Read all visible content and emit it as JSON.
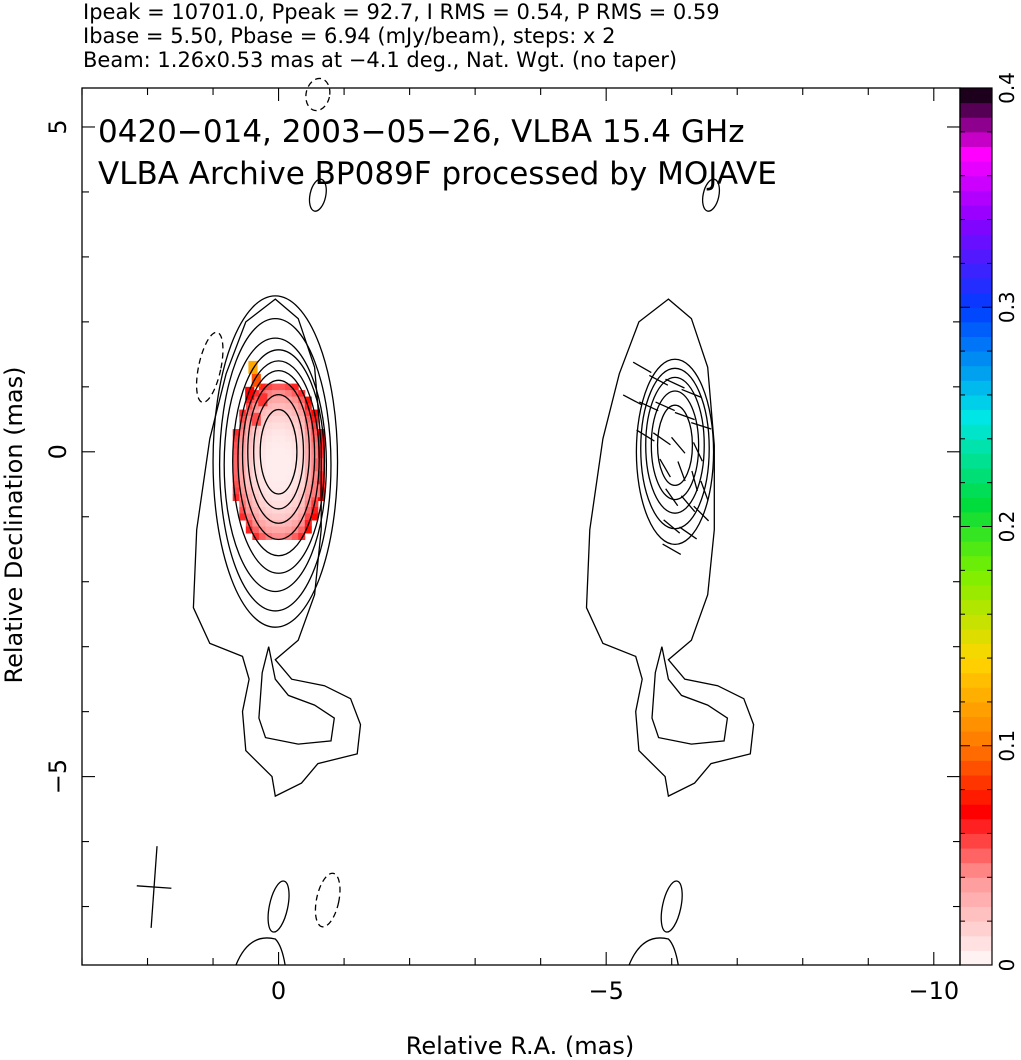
{
  "header": {
    "line1": "Ipeak = 10701.0, Ppeak = 92.7, I RMS = 0.54, P RMS = 0.59",
    "line2": "Ibase = 5.50, Pbase = 6.94 (mJy/beam), steps: x 2",
    "line3": "Beam: 1.26x0.53 mas at −4.1 deg., Nat. Wgt. (no taper)"
  },
  "chart_data": {
    "type": "heatmap",
    "title": "0420−014, 2003−05−26, VLBA 15.4 GHz",
    "subtitle": "VLBA Archive BP089F processed by MOJAVE",
    "xlabel": "Relative R.A. (mas)",
    "ylabel": "Relative Declination (mas)",
    "xlim": [
      3.0,
      -10.4
    ],
    "ylim": [
      -7.9,
      5.6
    ],
    "x_ticks": [
      0,
      -5,
      -10
    ],
    "x_tick_labels": [
      "0",
      "−5",
      "−10"
    ],
    "y_ticks": [
      5,
      0,
      -5
    ],
    "y_tick_labels": [
      "5",
      "0",
      "−5"
    ],
    "colorbar": {
      "range": [
        0,
        0.4
      ],
      "ticks": [
        0,
        0.1,
        0.2,
        0.3,
        0.4
      ],
      "tick_labels": [
        "0",
        "0.1",
        "0.2",
        "0.3",
        "0.4"
      ]
    },
    "panels": [
      {
        "name": "left",
        "x_offset": 0
      },
      {
        "name": "right",
        "x_offset": -6.0
      }
    ],
    "contour_levels_mJy": [
      5.5,
      11,
      22,
      44,
      88,
      176,
      352,
      704,
      1408,
      2816,
      5632
    ],
    "contours": {
      "outer_jet": [
        [
          0.05,
          2.35
        ],
        [
          0.5,
          2.0
        ],
        [
          0.8,
          1.2
        ],
        [
          1.05,
          0.2
        ],
        [
          1.25,
          -1.2
        ],
        [
          1.3,
          -2.4
        ],
        [
          1.05,
          -2.95
        ],
        [
          0.55,
          -3.15
        ],
        [
          0.45,
          -3.5
        ],
        [
          0.55,
          -4.0
        ],
        [
          0.5,
          -4.6
        ],
        [
          0.1,
          -5.0
        ],
        [
          0.05,
          -5.3
        ],
        [
          -0.35,
          -5.1
        ],
        [
          -0.6,
          -4.8
        ],
        [
          -1.2,
          -4.65
        ],
        [
          -1.25,
          -4.2
        ],
        [
          -1.1,
          -3.8
        ],
        [
          -0.7,
          -3.6
        ],
        [
          -0.2,
          -3.5
        ],
        [
          0.05,
          -3.2
        ],
        [
          -0.3,
          -2.9
        ],
        [
          -0.55,
          -2.2
        ],
        [
          -0.65,
          -1.2
        ],
        [
          -0.65,
          0.1
        ],
        [
          -0.55,
          1.3
        ],
        [
          -0.3,
          2.05
        ],
        [
          0.05,
          2.35
        ]
      ],
      "hole": [
        [
          0.15,
          -3.0
        ],
        [
          0.25,
          -3.4
        ],
        [
          0.3,
          -4.1
        ],
        [
          0.2,
          -4.4
        ],
        [
          -0.3,
          -4.5
        ],
        [
          -0.8,
          -4.45
        ],
        [
          -0.85,
          -4.1
        ],
        [
          -0.55,
          -3.9
        ],
        [
          -0.15,
          -3.75
        ],
        [
          0.05,
          -3.5
        ],
        [
          0.15,
          -3.0
        ]
      ],
      "nested_ellipses": [
        {
          "cx": 0.05,
          "cy": -0.15,
          "rx": 0.95,
          "ry": 2.55
        },
        {
          "cx": 0.05,
          "cy": -0.2,
          "rx": 0.85,
          "ry": 2.25
        },
        {
          "cx": 0.05,
          "cy": -0.2,
          "rx": 0.78,
          "ry": 1.95
        },
        {
          "cx": 0.0,
          "cy": -0.15,
          "rx": 0.7,
          "ry": 1.72
        },
        {
          "cx": 0.0,
          "cy": -0.1,
          "rx": 0.62,
          "ry": 1.5
        },
        {
          "cx": 0.0,
          "cy": -0.05,
          "rx": 0.55,
          "ry": 1.3
        },
        {
          "cx": 0.0,
          "cy": 0.0,
          "rx": 0.47,
          "ry": 1.1
        },
        {
          "cx": 0.0,
          "cy": 0.0,
          "rx": 0.38,
          "ry": 0.88
        },
        {
          "cx": 0.0,
          "cy": 0.0,
          "rx": 0.28,
          "ry": 0.65
        }
      ],
      "blobs": [
        {
          "cx": -0.6,
          "cy": 5.5,
          "rx": 0.18,
          "ry": 0.25,
          "dashed": true
        },
        {
          "cx": -0.6,
          "cy": 3.95,
          "rx": 0.12,
          "ry": 0.25,
          "dashed": false
        },
        {
          "cx": 1.05,
          "cy": 1.3,
          "rx": 0.17,
          "ry": 0.55,
          "dashed": true
        },
        {
          "cx": 0.0,
          "cy": -7.0,
          "rx": 0.14,
          "ry": 0.4,
          "dashed": false
        },
        {
          "cx": -0.75,
          "cy": -6.9,
          "rx": 0.17,
          "ry": 0.42,
          "dashed": true
        }
      ]
    },
    "polarized_intensity_pixels": [
      {
        "x": 0.4,
        "y": 1.3,
        "v": 0.12
      },
      {
        "x": 0.35,
        "y": 1.1,
        "v": 0.09
      },
      {
        "x": 0.45,
        "y": 0.9,
        "v": 0.07
      },
      {
        "x": 0.25,
        "y": 0.8,
        "v": 0.06
      },
      {
        "x": 0.35,
        "y": 0.5,
        "v": 0.055
      },
      {
        "x": -0.6,
        "y": -0.2,
        "v": 0.05
      },
      {
        "x": -0.55,
        "y": -0.6,
        "v": 0.045
      }
    ],
    "polarization_vectors": [
      {
        "x": -5.55,
        "y": 1.3,
        "pa": -60
      },
      {
        "x": -5.8,
        "y": 1.1,
        "pa": -62
      },
      {
        "x": -6.05,
        "y": 1.05,
        "pa": -65
      },
      {
        "x": -6.3,
        "y": 0.9,
        "pa": -68
      },
      {
        "x": -5.4,
        "y": 0.8,
        "pa": -62
      },
      {
        "x": -5.65,
        "y": 0.7,
        "pa": -65
      },
      {
        "x": -5.9,
        "y": 0.7,
        "pa": -66
      },
      {
        "x": -6.2,
        "y": 0.55,
        "pa": -70
      },
      {
        "x": -6.45,
        "y": 0.4,
        "pa": -72
      },
      {
        "x": -5.6,
        "y": 0.25,
        "pa": -58
      },
      {
        "x": -5.85,
        "y": 0.2,
        "pa": -55
      },
      {
        "x": -6.1,
        "y": 0.1,
        "pa": -40
      },
      {
        "x": -6.4,
        "y": 0.0,
        "pa": -25
      },
      {
        "x": -5.9,
        "y": -0.25,
        "pa": -30
      },
      {
        "x": -6.15,
        "y": -0.3,
        "pa": -20
      },
      {
        "x": -6.35,
        "y": -0.45,
        "pa": -15
      },
      {
        "x": -6.5,
        "y": -0.6,
        "pa": -20
      },
      {
        "x": -6.0,
        "y": -0.7,
        "pa": -35
      },
      {
        "x": -6.25,
        "y": -0.8,
        "pa": -40
      },
      {
        "x": -6.45,
        "y": -0.95,
        "pa": -45
      },
      {
        "x": -6.0,
        "y": -1.15,
        "pa": -50
      },
      {
        "x": -6.25,
        "y": -1.25,
        "pa": -55
      },
      {
        "x": -6.0,
        "y": -1.5,
        "pa": -60
      }
    ],
    "beam_marker": {
      "x": 1.9,
      "y": -6.7,
      "major": 1.26,
      "minor": 0.53,
      "pa": -4.1
    }
  }
}
